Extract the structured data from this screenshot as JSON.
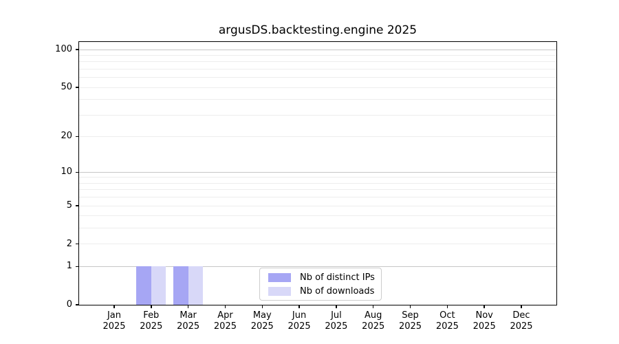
{
  "chart_data": {
    "type": "bar",
    "title": "argusDS.backtesting.engine 2025",
    "categories": [
      "Jan",
      "Feb",
      "Mar",
      "Apr",
      "May",
      "Jun",
      "Jul",
      "Aug",
      "Sep",
      "Oct",
      "Nov",
      "Dec"
    ],
    "x_tick_year": "2025",
    "series": [
      {
        "name": "Nb of distinct IPs",
        "color": "#a6a6f4",
        "values": [
          0,
          1,
          1,
          0,
          0,
          0,
          0,
          0,
          0,
          0,
          0,
          0
        ]
      },
      {
        "name": "Nb of downloads",
        "color": "#d8d8f8",
        "values": [
          0,
          1,
          1,
          0,
          0,
          0,
          0,
          0,
          0,
          0,
          0,
          0
        ]
      }
    ],
    "y_scale": "log1p",
    "ylim": [
      0,
      115
    ],
    "y_ticks": [
      0,
      1,
      2,
      5,
      10,
      20,
      50,
      100
    ],
    "major_gridlines": [
      1,
      10,
      100
    ],
    "minor_gridlines": [
      2,
      3,
      4,
      5,
      6,
      7,
      8,
      9,
      20,
      30,
      40,
      50,
      60,
      70,
      80,
      90
    ],
    "grid": true,
    "xlabel": "",
    "ylabel": "",
    "legend": {
      "entries": [
        "Nb of distinct IPs",
        "Nb of downloads"
      ],
      "position": "lower center"
    }
  },
  "colors": {
    "distinct_ips": "#a6a6f4",
    "downloads": "#d8d8f8",
    "grid_minor": "#ededed",
    "grid_major": "#c6c6c6",
    "axis": "#000000",
    "text": "#000000",
    "legend_border": "#cccccc",
    "background": "#ffffff"
  }
}
